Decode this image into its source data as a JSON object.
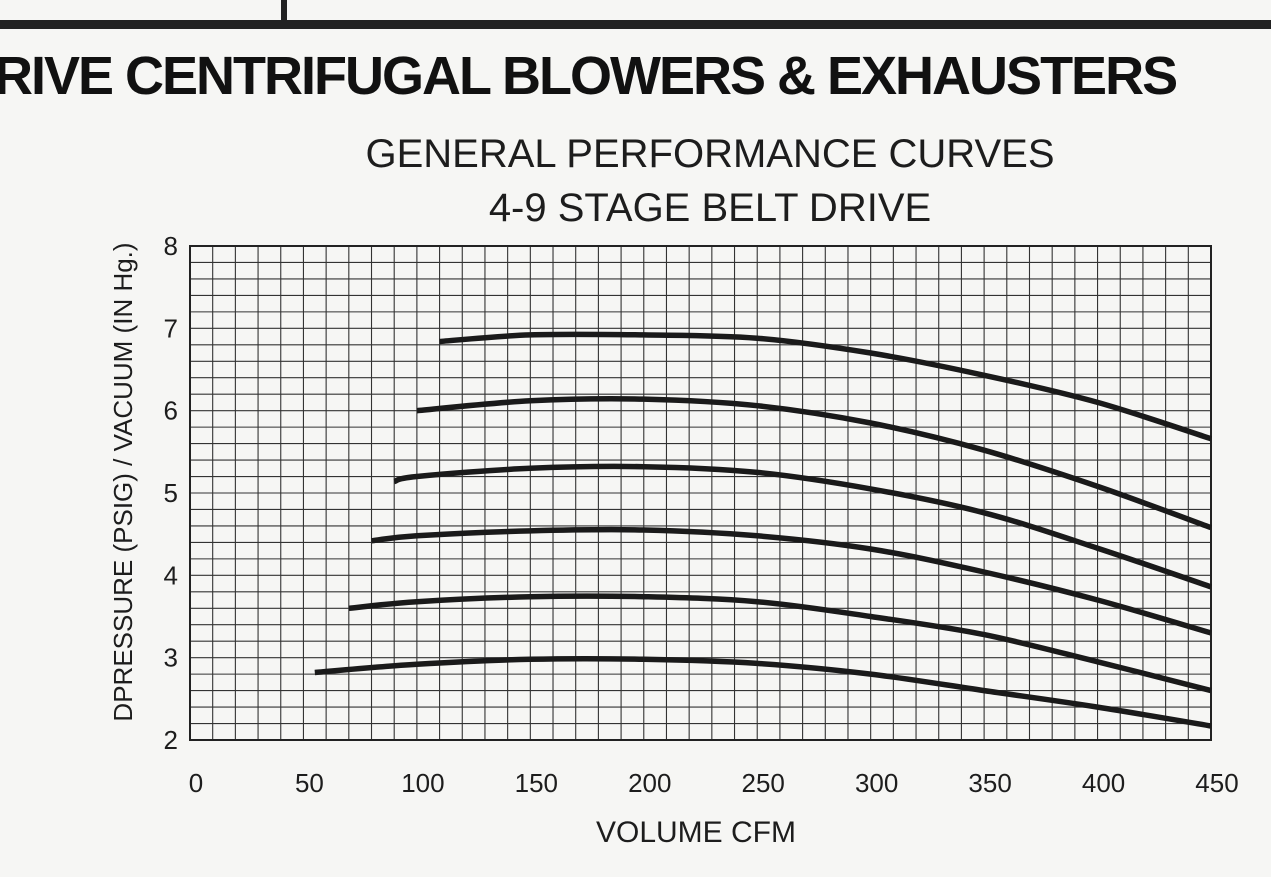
{
  "header": {
    "banner_text": "RIVE CENTRIFUGAL BLOWERS & EXHAUSTERS"
  },
  "chart_data": {
    "type": "line",
    "title": "GENERAL PERFORMANCE CURVES",
    "subtitle": "4-9 STAGE BELT DRIVE",
    "xlabel": "VOLUME CFM",
    "ylabel": "DPRESSURE (PSIG) / VACUUM (IN Hg.)",
    "xlim": [
      0,
      450
    ],
    "ylim": [
      2,
      8
    ],
    "x_ticks": [
      0,
      50,
      100,
      150,
      200,
      250,
      300,
      350,
      400,
      450
    ],
    "y_ticks": [
      2,
      3,
      4,
      5,
      6,
      7,
      8
    ],
    "grid": true,
    "line_color": "#1a1a1a",
    "series": [
      {
        "x": [
          55,
          100,
          150,
          200,
          250,
          300,
          350,
          400,
          450
        ],
        "y": [
          2.82,
          2.92,
          2.98,
          2.98,
          2.93,
          2.8,
          2.6,
          2.4,
          2.17
        ]
      },
      {
        "x": [
          70,
          100,
          150,
          200,
          250,
          300,
          350,
          400,
          450
        ],
        "y": [
          3.6,
          3.68,
          3.74,
          3.74,
          3.68,
          3.5,
          3.28,
          2.95,
          2.6
        ]
      },
      {
        "x": [
          80,
          100,
          150,
          200,
          250,
          300,
          350,
          400,
          450
        ],
        "y": [
          4.42,
          4.48,
          4.54,
          4.55,
          4.48,
          4.32,
          4.04,
          3.7,
          3.3
        ]
      },
      {
        "x": [
          90,
          100,
          150,
          200,
          250,
          300,
          350,
          400,
          450
        ],
        "y": [
          5.14,
          5.2,
          5.3,
          5.32,
          5.25,
          5.05,
          4.76,
          4.33,
          3.86
        ]
      },
      {
        "x": [
          100,
          150,
          200,
          250,
          300,
          350,
          400,
          450
        ],
        "y": [
          6.0,
          6.12,
          6.14,
          6.06,
          5.85,
          5.52,
          5.08,
          4.58
        ]
      },
      {
        "x": [
          110,
          150,
          200,
          250,
          300,
          350,
          400,
          450
        ],
        "y": [
          6.84,
          6.92,
          6.92,
          6.88,
          6.7,
          6.43,
          6.1,
          5.66
        ]
      }
    ]
  }
}
